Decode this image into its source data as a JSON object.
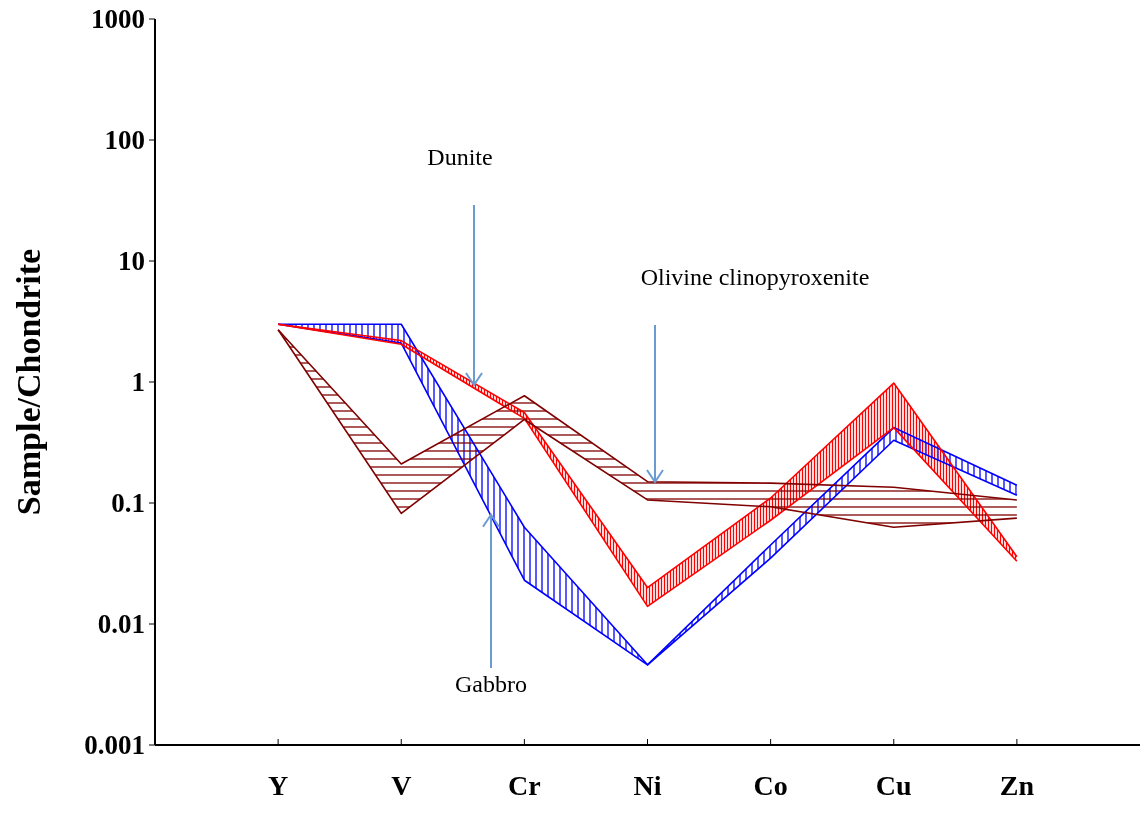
{
  "chart_data": {
    "type": "line",
    "ylabel": "Sample/Chondrite",
    "categories": [
      "Y",
      "V",
      "Cr",
      "Ni",
      "Co",
      "Cu",
      "Zn"
    ],
    "series": [
      {
        "color": "#0000ff",
        "values": [
          3.0,
          3.0,
          0.063,
          0.0046,
          0.045,
          0.42,
          0.14
        ]
      },
      {
        "color": "#0000ff",
        "values": [
          3.0,
          2.1,
          0.023,
          0.0046,
          0.035,
          0.33,
          0.116
        ]
      },
      {
        "color": "#ff0000",
        "values": [
          3.0,
          2.2,
          0.56,
          0.02,
          0.11,
          0.98,
          0.036
        ]
      },
      {
        "color": "#ff0000",
        "values": [
          3.0,
          2.05,
          0.5,
          0.014,
          0.072,
          0.42,
          0.033
        ]
      },
      {
        "color": "#800000",
        "values": [
          2.7,
          0.21,
          0.77,
          0.15,
          0.146,
          0.135,
          0.106
        ]
      },
      {
        "color": "#800000",
        "values": [
          2.7,
          0.082,
          0.49,
          0.106,
          0.093,
          0.063,
          0.075
        ]
      }
    ],
    "annotations": [
      "Dunite",
      "Olivine clinopyroxenite",
      {
        "text": "Gabbro",
        "y": 0.08
      }
    ],
    "log": "y",
    "ylim": [
      0.001,
      1000
    ],
    "yticks": [
      0.001,
      0.01,
      0.1,
      1,
      10,
      100,
      1000
    ],
    "grid": false,
    "marker": "none",
    "line_style": "solid"
  }
}
